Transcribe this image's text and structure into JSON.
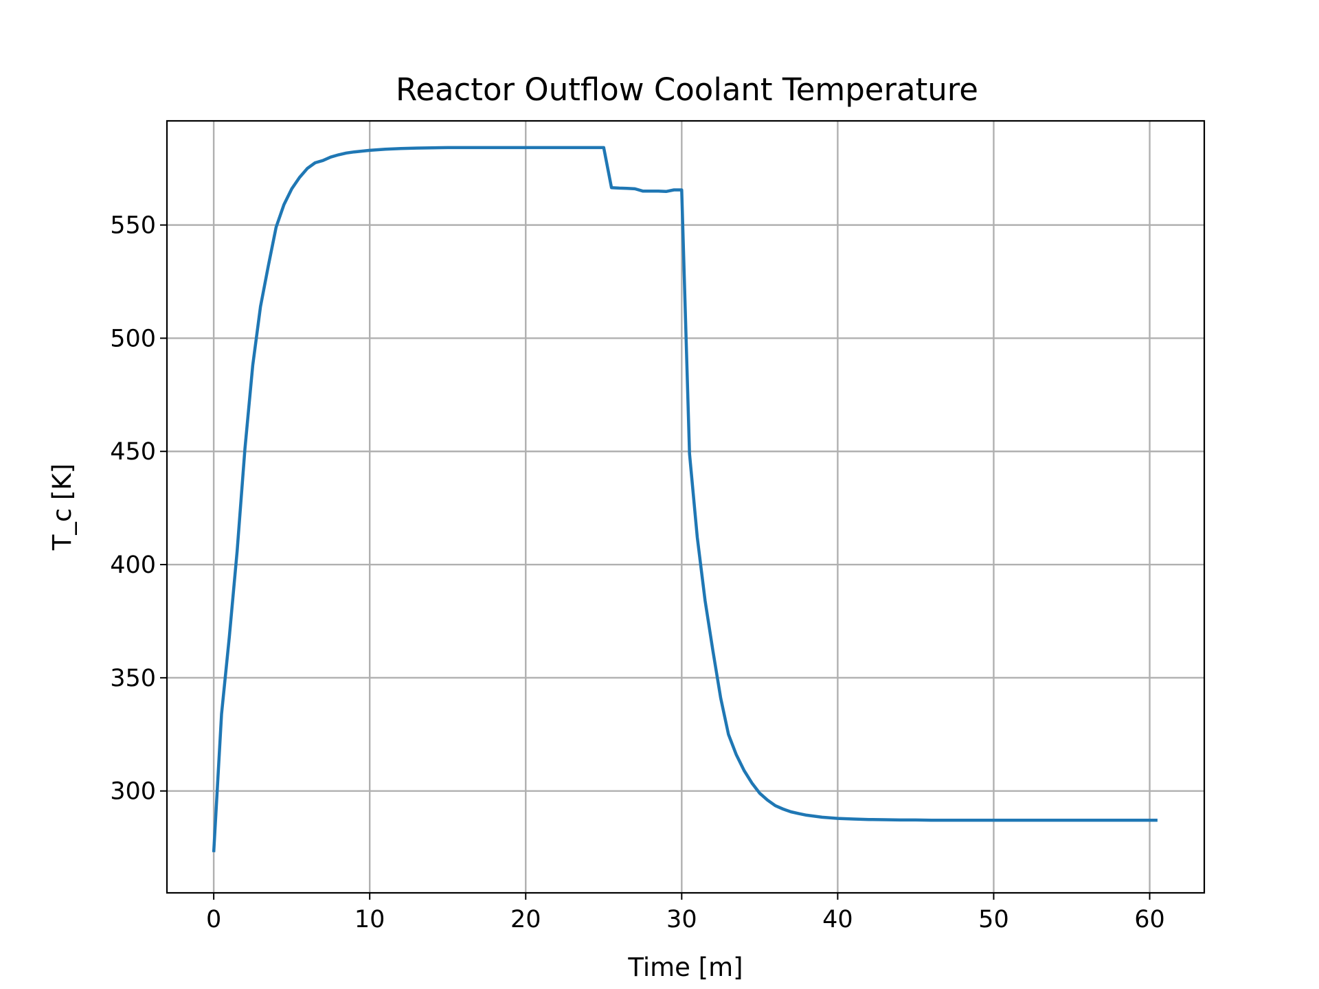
{
  "chart_data": {
    "type": "line",
    "title": "Reactor Outflow Coolant Temperature",
    "xlabel": "Time [m]",
    "ylabel": "T_c [K]",
    "xlim": [
      -3,
      63.5
    ],
    "ylim": [
      255,
      596
    ],
    "xticks": [
      0,
      10,
      20,
      30,
      40,
      50,
      60
    ],
    "yticks": [
      300,
      350,
      400,
      450,
      500,
      550
    ],
    "grid": true,
    "legend": "none",
    "series": [
      {
        "color": "#1f77b4",
        "x": [
          0,
          0.5,
          1,
          1.5,
          2,
          2.5,
          3,
          3.5,
          4,
          4.5,
          5,
          5.5,
          6,
          6.5,
          7,
          7.5,
          8,
          8.5,
          9,
          10,
          11,
          12,
          13,
          14,
          15,
          16,
          17,
          18,
          19,
          20,
          21,
          22,
          23,
          24,
          25,
          25.5,
          26,
          26.5,
          27,
          27.5,
          28,
          28.5,
          29,
          29.5,
          30,
          30.5,
          31,
          31.5,
          32,
          32.5,
          33,
          33.5,
          34,
          34.5,
          35,
          35.5,
          36,
          36.5,
          37,
          37.5,
          38,
          39,
          40,
          41,
          42,
          43,
          44,
          45,
          46,
          48,
          50,
          52,
          54,
          56,
          58,
          60,
          60.5
        ],
        "y": [
          273,
          334,
          368,
          406,
          451,
          488,
          514,
          532,
          549,
          559,
          566,
          571,
          575,
          577.5,
          578.5,
          580,
          581,
          581.8,
          582.3,
          583,
          583.5,
          583.8,
          584,
          584.1,
          584.2,
          584.2,
          584.2,
          584.2,
          584.2,
          584.2,
          584.2,
          584.2,
          584.2,
          584.2,
          584.2,
          566.5,
          566.3,
          566.2,
          566,
          565,
          565,
          565,
          564.8,
          565.5,
          565.5,
          449,
          412,
          384,
          362,
          341,
          325,
          316,
          309,
          303.5,
          299,
          296,
          293.5,
          292,
          290.8,
          290,
          289.3,
          288.4,
          287.9,
          287.6,
          287.4,
          287.3,
          287.2,
          287.2,
          287.1,
          287.1,
          287.1,
          287.1,
          287.1,
          287.1,
          287.1,
          287.1,
          287.1
        ]
      }
    ]
  }
}
